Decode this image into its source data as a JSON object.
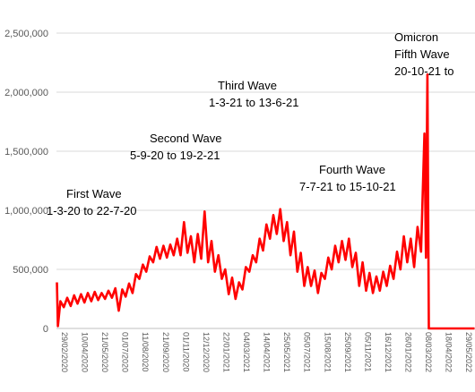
{
  "chart_data": {
    "type": "line",
    "title": "",
    "xlabel": "",
    "ylabel": "",
    "ylim": [
      0,
      2500000
    ],
    "yticks": [
      "0",
      "500,000",
      "1,000,000",
      "1,500,000",
      "2,000,000",
      "2,500,000"
    ],
    "ytick_values": [
      0,
      500000,
      1000000,
      1500000,
      2000000,
      2500000
    ],
    "grid": true,
    "line_color": "#ff0000",
    "x_axis_note": "dense rotated date labels (e.g. 29/02/2020), mostly illegible",
    "series": [
      {
        "points": [
          [
            "2020-03-01",
            390000
          ],
          [
            "2020-03-03",
            20000
          ],
          [
            "2020-03-08",
            230000
          ],
          [
            "2020-03-15",
            180000
          ],
          [
            "2020-03-22",
            260000
          ],
          [
            "2020-03-29",
            190000
          ],
          [
            "2020-04-05",
            280000
          ],
          [
            "2020-04-12",
            210000
          ],
          [
            "2020-04-19",
            290000
          ],
          [
            "2020-04-26",
            220000
          ],
          [
            "2020-05-03",
            300000
          ],
          [
            "2020-05-10",
            230000
          ],
          [
            "2020-05-17",
            310000
          ],
          [
            "2020-05-24",
            240000
          ],
          [
            "2020-05-31",
            300000
          ],
          [
            "2020-06-07",
            250000
          ],
          [
            "2020-06-14",
            320000
          ],
          [
            "2020-06-21",
            260000
          ],
          [
            "2020-06-28",
            340000
          ],
          [
            "2020-07-05",
            150000
          ],
          [
            "2020-07-12",
            330000
          ],
          [
            "2020-07-19",
            270000
          ],
          [
            "2020-07-26",
            380000
          ],
          [
            "2020-08-02",
            300000
          ],
          [
            "2020-08-09",
            460000
          ],
          [
            "2020-08-16",
            420000
          ],
          [
            "2020-08-23",
            540000
          ],
          [
            "2020-08-30",
            480000
          ],
          [
            "2020-09-06",
            610000
          ],
          [
            "2020-09-13",
            560000
          ],
          [
            "2020-09-20",
            690000
          ],
          [
            "2020-09-27",
            590000
          ],
          [
            "2020-10-04",
            700000
          ],
          [
            "2020-10-11",
            600000
          ],
          [
            "2020-10-18",
            710000
          ],
          [
            "2020-10-25",
            620000
          ],
          [
            "2020-11-01",
            760000
          ],
          [
            "2020-11-08",
            620000
          ],
          [
            "2020-11-15",
            900000
          ],
          [
            "2020-11-22",
            640000
          ],
          [
            "2020-11-29",
            780000
          ],
          [
            "2020-12-06",
            560000
          ],
          [
            "2020-12-13",
            800000
          ],
          [
            "2020-12-20",
            590000
          ],
          [
            "2020-12-27",
            990000
          ],
          [
            "2021-01-03",
            560000
          ],
          [
            "2021-01-10",
            740000
          ],
          [
            "2021-01-17",
            480000
          ],
          [
            "2021-01-24",
            620000
          ],
          [
            "2021-01-31",
            420000
          ],
          [
            "2021-02-07",
            500000
          ],
          [
            "2021-02-14",
            290000
          ],
          [
            "2021-02-21",
            430000
          ],
          [
            "2021-02-28",
            250000
          ],
          [
            "2021-03-07",
            390000
          ],
          [
            "2021-03-14",
            330000
          ],
          [
            "2021-03-21",
            520000
          ],
          [
            "2021-03-28",
            480000
          ],
          [
            "2021-04-04",
            620000
          ],
          [
            "2021-04-11",
            560000
          ],
          [
            "2021-04-18",
            760000
          ],
          [
            "2021-04-25",
            660000
          ],
          [
            "2021-05-02",
            880000
          ],
          [
            "2021-05-09",
            760000
          ],
          [
            "2021-05-16",
            960000
          ],
          [
            "2021-05-23",
            800000
          ],
          [
            "2021-05-30",
            1010000
          ],
          [
            "2021-06-06",
            740000
          ],
          [
            "2021-06-13",
            900000
          ],
          [
            "2021-06-20",
            620000
          ],
          [
            "2021-06-27",
            820000
          ],
          [
            "2021-07-04",
            480000
          ],
          [
            "2021-07-11",
            640000
          ],
          [
            "2021-07-18",
            360000
          ],
          [
            "2021-07-25",
            520000
          ],
          [
            "2021-08-01",
            360000
          ],
          [
            "2021-08-08",
            490000
          ],
          [
            "2021-08-15",
            300000
          ],
          [
            "2021-08-22",
            470000
          ],
          [
            "2021-08-29",
            420000
          ],
          [
            "2021-09-05",
            600000
          ],
          [
            "2021-09-12",
            500000
          ],
          [
            "2021-09-19",
            700000
          ],
          [
            "2021-09-26",
            560000
          ],
          [
            "2021-10-03",
            740000
          ],
          [
            "2021-10-10",
            580000
          ],
          [
            "2021-10-17",
            760000
          ],
          [
            "2021-10-24",
            520000
          ],
          [
            "2021-10-31",
            640000
          ],
          [
            "2021-11-07",
            360000
          ],
          [
            "2021-11-14",
            560000
          ],
          [
            "2021-11-21",
            320000
          ],
          [
            "2021-11-28",
            470000
          ],
          [
            "2021-12-05",
            300000
          ],
          [
            "2021-12-12",
            440000
          ],
          [
            "2021-12-19",
            320000
          ],
          [
            "2021-12-26",
            480000
          ],
          [
            "2022-01-02",
            360000
          ],
          [
            "2022-01-09",
            530000
          ],
          [
            "2022-01-16",
            420000
          ],
          [
            "2022-01-23",
            650000
          ],
          [
            "2022-01-30",
            500000
          ],
          [
            "2022-02-06",
            780000
          ],
          [
            "2022-02-13",
            560000
          ],
          [
            "2022-02-20",
            760000
          ],
          [
            "2022-02-27",
            520000
          ],
          [
            "2022-03-06",
            860000
          ],
          [
            "2022-03-13",
            650000
          ],
          [
            "2022-03-20",
            1650000
          ],
          [
            "2022-03-23",
            600000
          ],
          [
            "2022-03-26",
            2150000
          ],
          [
            "2022-03-29",
            0
          ],
          [
            "2022-04-05",
            0
          ],
          [
            "2022-06-30",
            0
          ]
        ]
      }
    ],
    "annotations": [
      {
        "lines": [
          "First Wave",
          "1-3-20 to 22-7-20"
        ]
      },
      {
        "lines": [
          "Second Wave",
          "5-9-20 to 19-2-21"
        ]
      },
      {
        "lines": [
          "Third Wave",
          "1-3-21 to 13-6-21"
        ]
      },
      {
        "lines": [
          "Fourth Wave",
          "7-7-21 to 15-10-21"
        ]
      },
      {
        "lines": [
          "Omicron",
          "Fifth Wave",
          "20-10-21 to"
        ]
      }
    ],
    "x_tick_labels": [
      "29/02/2020",
      "10/04/2020",
      "21/05/2020",
      "01/07/2020",
      "11/08/2020",
      "21/09/2020",
      "01/11/2020",
      "12/12/2020",
      "22/01/2021",
      "04/03/2021",
      "14/04/2021",
      "25/05/2021",
      "05/07/2021",
      "15/08/2021",
      "25/09/2021",
      "05/11/2021",
      "16/12/2021",
      "26/01/2022",
      "08/03/2022",
      "18/04/2022",
      "29/05/2022"
    ]
  }
}
